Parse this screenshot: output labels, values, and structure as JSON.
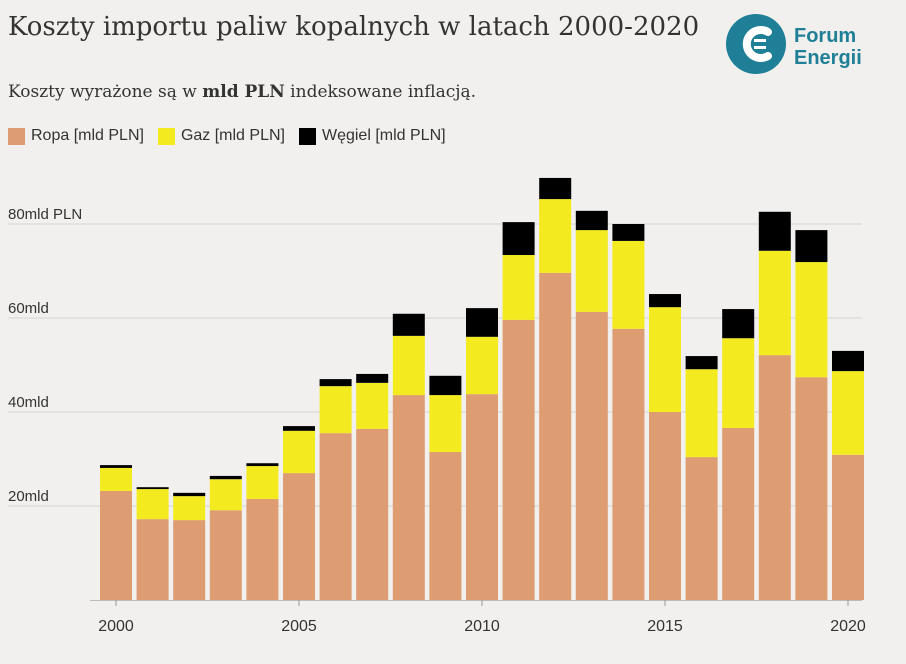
{
  "title": "Koszty importu paliw kopalnych w latach 2000-2020",
  "subtitle": {
    "pre": "Koszty wyrażone są w ",
    "bold": "mld PLN",
    "post": " indeksowane inflacją."
  },
  "logo": {
    "text1": "Forum",
    "text2": "Energii",
    "color": "#1f7f96"
  },
  "chart_data": {
    "type": "bar",
    "stacked": true,
    "categories": [
      2000,
      2001,
      2002,
      2003,
      2004,
      2005,
      2006,
      2007,
      2008,
      2009,
      2010,
      2011,
      2012,
      2013,
      2014,
      2015,
      2016,
      2017,
      2018,
      2019,
      2020
    ],
    "series": [
      {
        "name": "Ropa [mld PLN]",
        "color": "#dd9c72",
        "values": [
          23.2,
          17.2,
          17.0,
          19.1,
          21.5,
          27.0,
          35.5,
          36.4,
          43.6,
          31.5,
          43.8,
          59.6,
          69.6,
          61.3,
          57.7,
          40.0,
          30.4,
          36.6,
          52.1,
          47.4,
          30.9
        ]
      },
      {
        "name": "Gaz [mld PLN]",
        "color": "#f3ea1f",
        "values": [
          4.9,
          6.4,
          5.1,
          6.6,
          7.0,
          9.0,
          10.0,
          9.8,
          12.6,
          12.1,
          12.2,
          13.8,
          15.7,
          17.4,
          18.7,
          22.3,
          18.7,
          19.1,
          22.2,
          24.5,
          17.8
        ]
      },
      {
        "name": "Węgiel [mld PLN]",
        "color": "#000000",
        "values": [
          0.6,
          0.4,
          0.7,
          0.7,
          0.6,
          1.0,
          1.5,
          1.9,
          4.7,
          4.1,
          6.1,
          7.0,
          4.5,
          4.1,
          3.6,
          2.8,
          2.8,
          6.2,
          8.3,
          6.8,
          4.3
        ]
      }
    ],
    "yticks": [
      {
        "value": 20,
        "label": "20mld"
      },
      {
        "value": 40,
        "label": "40mld"
      },
      {
        "value": 60,
        "label": "60mld"
      },
      {
        "value": 80,
        "label": "80mld PLN"
      }
    ],
    "xticks": [
      2000,
      2005,
      2010,
      2015,
      2020
    ],
    "ylim": [
      0,
      90
    ],
    "grid": true,
    "legend": "top-left"
  }
}
